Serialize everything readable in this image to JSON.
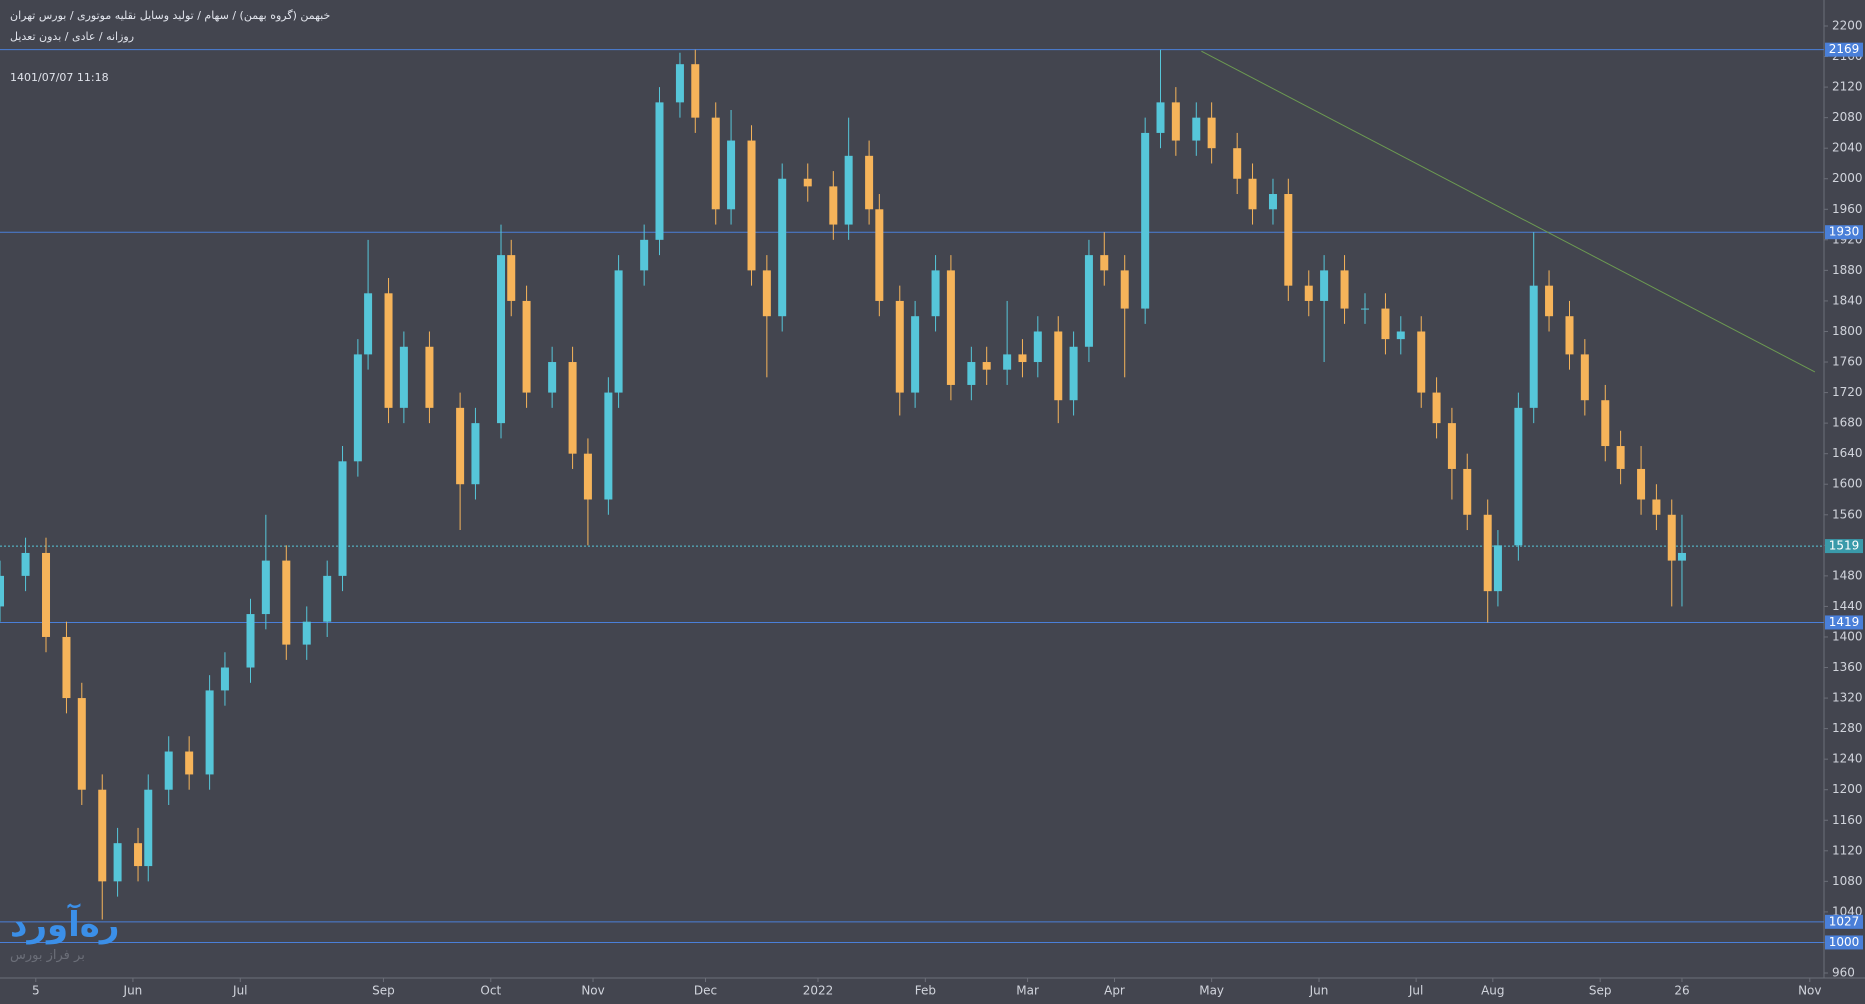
{
  "chart_data": {
    "type": "candlestick",
    "symbol": "خبهمن (گروه بهمن) / سهام / تولید وسایل نقلیه موتوری / بورس تهران",
    "subtitle": "روزانه / عادی / بدون تعدیل",
    "timestamp": "1401/07/07 11:18",
    "watermark": {
      "title": "ره‌آورد",
      "subtitle": "بر فراز بورس"
    },
    "up_color": "#56c6d9",
    "down_color": "#f6b45a",
    "level_color": "#4a7fd8",
    "trend_color": "#6c9a52",
    "x": [
      0,
      5,
      9,
      13,
      16,
      20,
      23,
      27,
      29,
      33,
      37,
      41,
      44,
      49,
      52,
      56,
      60,
      64,
      67,
      70,
      72,
      76,
      79,
      84,
      90,
      93,
      98,
      100,
      103,
      108,
      112,
      115,
      119,
      121,
      126,
      129,
      133,
      136,
      140,
      143,
      147,
      150,
      153,
      158,
      163,
      166,
      170,
      172,
      176,
      179,
      183,
      186,
      190,
      193,
      197,
      200,
      203,
      207,
      210,
      213,
      216,
      220,
      224,
      227,
      230,
      234,
      237,
      242,
      245,
      249,
      252,
      256,
      259,
      263,
      267,
      271,
      274,
      278,
      281,
      284,
      287,
      291,
      293,
      297,
      300,
      303,
      307,
      310,
      314,
      317,
      321,
      324,
      327,
      329
    ],
    "open": [
      1440,
      1480,
      1510,
      1400,
      1320,
      1200,
      1080,
      1130,
      1100,
      1200,
      1250,
      1220,
      1330,
      1360,
      1430,
      1500,
      1390,
      1420,
      1480,
      1630,
      1770,
      1850,
      1700,
      1780,
      1700,
      1600,
      1680,
      1900,
      1840,
      1720,
      1760,
      1640,
      1580,
      1720,
      1880,
      1920,
      2100,
      2150,
      2080,
      1960,
      2050,
      1880,
      1820,
      2000,
      1990,
      1940,
      2030,
      1960,
      1840,
      1720,
      1820,
      1880,
      1730,
      1760,
      1750,
      1770,
      1760,
      1800,
      1710,
      1780,
      1900,
      1880,
      1830,
      2060,
      2100,
      2050,
      2080,
      2040,
      2000,
      1960,
      1980,
      1860,
      1840,
      1880,
      1830,
      1830,
      1790,
      1800,
      1720,
      1680,
      1620,
      1560,
      1460,
      1520,
      1700,
      1860,
      1820,
      1770,
      1710,
      1650,
      1620,
      1580,
      1560,
      1500
    ],
    "high": [
      1500,
      1530,
      1530,
      1420,
      1340,
      1220,
      1150,
      1150,
      1220,
      1270,
      1270,
      1350,
      1380,
      1450,
      1560,
      1520,
      1440,
      1500,
      1650,
      1790,
      1920,
      1870,
      1800,
      1800,
      1720,
      1700,
      1940,
      1920,
      1860,
      1780,
      1780,
      1660,
      1740,
      1900,
      1940,
      2120,
      2165,
      2169,
      2100,
      2090,
      2070,
      1900,
      2020,
      2020,
      2010,
      2080,
      2050,
      1980,
      1860,
      1840,
      1900,
      1900,
      1780,
      1780,
      1840,
      1790,
      1820,
      1820,
      1800,
      1920,
      1930,
      1900,
      2080,
      2169,
      2120,
      2100,
      2100,
      2060,
      2020,
      2000,
      2000,
      1880,
      1900,
      1900,
      1850,
      1850,
      1820,
      1820,
      1740,
      1700,
      1640,
      1580,
      1540,
      1720,
      1930,
      1880,
      1840,
      1790,
      1730,
      1670,
      1650,
      1600,
      1580,
      1560
    ],
    "low": [
      1420,
      1460,
      1380,
      1300,
      1180,
      1030,
      1060,
      1080,
      1080,
      1180,
      1200,
      1200,
      1310,
      1340,
      1410,
      1370,
      1370,
      1400,
      1460,
      1610,
      1750,
      1680,
      1680,
      1680,
      1540,
      1580,
      1660,
      1820,
      1700,
      1700,
      1620,
      1520,
      1560,
      1700,
      1860,
      1900,
      2080,
      2060,
      1940,
      1940,
      1860,
      1740,
      1800,
      1970,
      1920,
      1920,
      1940,
      1820,
      1690,
      1700,
      1800,
      1710,
      1710,
      1730,
      1730,
      1740,
      1740,
      1680,
      1690,
      1760,
      1860,
      1740,
      1810,
      2040,
      2030,
      2030,
      2020,
      1980,
      1940,
      1940,
      1840,
      1820,
      1760,
      1810,
      1810,
      1770,
      1770,
      1700,
      1660,
      1580,
      1540,
      1419,
      1440,
      1500,
      1680,
      1800,
      1750,
      1690,
      1630,
      1600,
      1560,
      1540,
      1440,
      1440
    ],
    "close": [
      1480,
      1510,
      1400,
      1320,
      1200,
      1080,
      1130,
      1100,
      1200,
      1250,
      1220,
      1330,
      1360,
      1430,
      1500,
      1390,
      1420,
      1480,
      1630,
      1770,
      1850,
      1700,
      1780,
      1700,
      1600,
      1680,
      1900,
      1840,
      1720,
      1760,
      1640,
      1580,
      1720,
      1880,
      1920,
      2100,
      2150,
      2080,
      1960,
      2050,
      1880,
      1820,
      2000,
      1990,
      1940,
      2030,
      1960,
      1840,
      1720,
      1820,
      1880,
      1730,
      1760,
      1750,
      1770,
      1760,
      1800,
      1710,
      1780,
      1900,
      1880,
      1830,
      2060,
      2100,
      2050,
      2080,
      2040,
      2000,
      1960,
      1980,
      1860,
      1840,
      1880,
      1830,
      1830,
      1790,
      1800,
      1720,
      1680,
      1620,
      1560,
      1460,
      1520,
      1700,
      1860,
      1820,
      1770,
      1710,
      1650,
      1620,
      1580,
      1560,
      1500,
      1510
    ],
    "xlim": [
      0,
      356
    ],
    "ylim": [
      960,
      2200
    ],
    "xticks": [
      {
        "value": 7,
        "label": "5"
      },
      {
        "value": 26,
        "label": "Jun"
      },
      {
        "value": 47,
        "label": "Jul"
      },
      {
        "value": 75,
        "label": "Sep"
      },
      {
        "value": 96,
        "label": "Oct"
      },
      {
        "value": 116,
        "label": "Nov"
      },
      {
        "value": 138,
        "label": "Dec"
      },
      {
        "value": 160,
        "label": "2022"
      },
      {
        "value": 181,
        "label": "Feb"
      },
      {
        "value": 201,
        "label": "Mar"
      },
      {
        "value": 218,
        "label": "Apr"
      },
      {
        "value": 237,
        "label": "May"
      },
      {
        "value": 258,
        "label": "Jun"
      },
      {
        "value": 277,
        "label": "Jul"
      },
      {
        "value": 292,
        "label": "Aug"
      },
      {
        "value": 313,
        "label": "Sep"
      },
      {
        "value": 329,
        "label": "26"
      },
      {
        "value": 354,
        "label": "Nov"
      }
    ],
    "yticks": [
      960,
      1000,
      1040,
      1080,
      1120,
      1160,
      1200,
      1240,
      1280,
      1320,
      1360,
      1400,
      1440,
      1480,
      1520,
      1560,
      1600,
      1640,
      1680,
      1720,
      1760,
      1800,
      1840,
      1880,
      1920,
      1960,
      2000,
      2040,
      2080,
      2120,
      2160,
      2200
    ],
    "levels": [
      2169,
      1930,
      1419,
      1027,
      1000
    ],
    "price_line": 1519,
    "trendline": {
      "x": [
        235,
        355
      ],
      "y": [
        2167,
        1747
      ]
    }
  }
}
